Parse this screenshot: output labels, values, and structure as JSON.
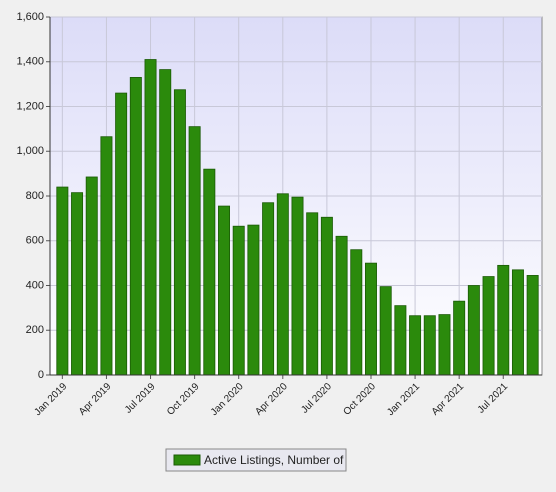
{
  "chart_data": {
    "type": "bar",
    "categories": [
      "Jan 2019",
      null,
      null,
      "Apr 2019",
      null,
      null,
      "Jul 2019",
      null,
      null,
      "Oct 2019",
      null,
      null,
      "Jan 2020",
      null,
      null,
      "Apr 2020",
      null,
      null,
      "Jul 2020",
      null,
      null,
      "Oct 2020",
      null,
      null,
      "Jan 2021",
      null,
      null,
      "Apr 2021",
      null,
      null,
      "Jul 2021",
      null,
      null
    ],
    "series": [
      {
        "name": "Active Listings, Number of",
        "color": "#2b8a0c",
        "values": [
          840,
          815,
          885,
          1065,
          1260,
          1330,
          1410,
          1365,
          1275,
          1110,
          920,
          755,
          665,
          670,
          770,
          810,
          795,
          725,
          705,
          620,
          560,
          500,
          395,
          310,
          265,
          265,
          270,
          330,
          400,
          440,
          490,
          470,
          445
        ]
      }
    ],
    "ylim": [
      0,
      1600
    ],
    "yticks": [
      0,
      200,
      400,
      600,
      800,
      {
        "value": 1000,
        "label": "1,000"
      },
      {
        "value": 1200,
        "label": "1,200"
      },
      {
        "value": 1400,
        "label": "1,400"
      },
      {
        "value": 1600,
        "label": "1,600"
      }
    ],
    "grid": true,
    "legend": "bottom"
  }
}
